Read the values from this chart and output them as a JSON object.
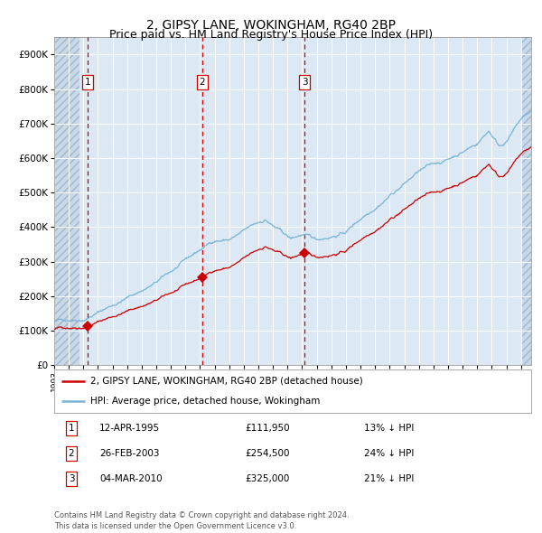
{
  "title": "2, GIPSY LANE, WOKINGHAM, RG40 2BP",
  "subtitle": "Price paid vs. HM Land Registry's House Price Index (HPI)",
  "legend_line1": "2, GIPSY LANE, WOKINGHAM, RG40 2BP (detached house)",
  "legend_line2": "HPI: Average price, detached house, Wokingham",
  "footer1": "Contains HM Land Registry data © Crown copyright and database right 2024.",
  "footer2": "This data is licensed under the Open Government Licence v3.0.",
  "sales": [
    {
      "label": "1",
      "date": "12-APR-1995",
      "price": 111950,
      "note": "13% ↓ HPI",
      "x": 1995.28
    },
    {
      "label": "2",
      "date": "26-FEB-2003",
      "price": 254500,
      "note": "24% ↓ HPI",
      "x": 2003.15
    },
    {
      "label": "3",
      "date": "04-MAR-2010",
      "price": 325000,
      "note": "21% ↓ HPI",
      "x": 2010.18
    }
  ],
  "hpi_color": "#7ab3d4",
  "sale_color": "#cc0000",
  "vline_color": "#cc0000",
  "background_color": "#dce9f5",
  "ylim": [
    0,
    950000
  ],
  "yticks": [
    0,
    100000,
    200000,
    300000,
    400000,
    500000,
    600000,
    700000,
    800000,
    900000
  ],
  "xmin": 1993.0,
  "xmax": 2025.7,
  "grid_color": "#ffffff",
  "title_fontsize": 10,
  "subtitle_fontsize": 9
}
